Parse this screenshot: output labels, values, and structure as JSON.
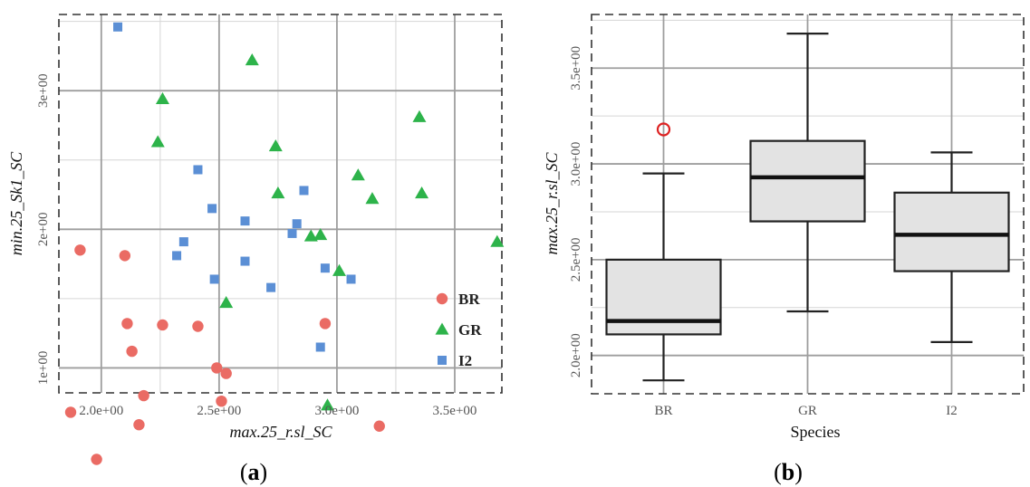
{
  "chart_data": [
    {
      "type": "scatter",
      "panel_label": {
        "open": "(",
        "letter": "a",
        "close": ")"
      },
      "xlabel": "max.25_r.sl_SC",
      "ylabel": "min.25_Sk1_SC",
      "xlim": [
        1.82,
        3.7
      ],
      "ylim": [
        0.82,
        3.55
      ],
      "xticks": [
        2.0,
        2.5,
        3.0,
        3.5
      ],
      "xtick_labels": [
        "2.0e+00",
        "2.5e+00",
        "3.0e+00",
        "3.5e+00"
      ],
      "yticks": [
        1,
        2,
        3
      ],
      "ytick_labels": [
        "1e+00",
        "2e+00",
        "3e+00"
      ],
      "grid": true,
      "legend_position": "bottom-right",
      "series": [
        {
          "name": "BR",
          "color": "#ea6b64",
          "marker": "circle",
          "points": [
            [
              1.91,
              1.85
            ],
            [
              2.1,
              1.81
            ],
            [
              2.11,
              1.32
            ],
            [
              2.13,
              1.12
            ],
            [
              1.87,
              0.68
            ],
            [
              1.98,
              0.34
            ],
            [
              2.16,
              0.59
            ],
            [
              2.18,
              0.8
            ],
            [
              2.26,
              1.31
            ],
            [
              2.41,
              1.3
            ],
            [
              2.49,
              1.0
            ],
            [
              2.53,
              0.96
            ],
            [
              2.51,
              0.76
            ],
            [
              2.95,
              1.32
            ],
            [
              3.18,
              0.58
            ]
          ]
        },
        {
          "name": "GR",
          "color": "#2db34a",
          "marker": "triangle",
          "points": [
            [
              2.64,
              3.22
            ],
            [
              2.26,
              2.94
            ],
            [
              2.24,
              2.63
            ],
            [
              2.74,
              2.6
            ],
            [
              2.75,
              2.26
            ],
            [
              3.35,
              2.81
            ],
            [
              3.09,
              2.39
            ],
            [
              3.36,
              2.26
            ],
            [
              3.15,
              2.22
            ],
            [
              2.89,
              1.95
            ],
            [
              2.93,
              1.96
            ],
            [
              3.01,
              1.7
            ],
            [
              2.53,
              1.47
            ],
            [
              3.68,
              1.91
            ],
            [
              2.96,
              0.73
            ]
          ]
        },
        {
          "name": "I2",
          "color": "#5b8fd5",
          "marker": "square",
          "points": [
            [
              2.07,
              3.46
            ],
            [
              2.41,
              2.43
            ],
            [
              2.47,
              2.15
            ],
            [
              2.61,
              2.06
            ],
            [
              2.86,
              2.28
            ],
            [
              2.83,
              2.04
            ],
            [
              2.81,
              1.97
            ],
            [
              2.35,
              1.91
            ],
            [
              2.32,
              1.81
            ],
            [
              2.61,
              1.77
            ],
            [
              2.95,
              1.72
            ],
            [
              2.48,
              1.64
            ],
            [
              2.72,
              1.58
            ],
            [
              3.06,
              1.64
            ],
            [
              2.93,
              1.15
            ]
          ]
        }
      ]
    },
    {
      "type": "box",
      "panel_label": {
        "open": "(",
        "letter": "b",
        "close": ")"
      },
      "xlabel": "Species",
      "ylabel": "max.25_r.sl_SC",
      "categories": [
        "BR",
        "GR",
        "I2"
      ],
      "ylim": [
        1.8,
        3.78
      ],
      "yticks": [
        2.0,
        2.5,
        3.0,
        3.5
      ],
      "ytick_labels": [
        "2.0e+00",
        "2.5e+00",
        "3.0e+00",
        "3.5e+00"
      ],
      "grid": true,
      "outlier_color": "#dd2222",
      "box_fill": "#e3e3e3",
      "boxes": [
        {
          "category": "BR",
          "whisker_low": 1.87,
          "q1": 2.11,
          "median": 2.18,
          "q3": 2.5,
          "whisker_high": 2.95,
          "outliers": [
            3.18
          ]
        },
        {
          "category": "GR",
          "whisker_low": 2.23,
          "q1": 2.7,
          "median": 2.93,
          "q3": 3.12,
          "whisker_high": 3.68,
          "outliers": []
        },
        {
          "category": "I2",
          "whisker_low": 2.07,
          "q1": 2.44,
          "median": 2.63,
          "q3": 2.85,
          "whisker_high": 3.06,
          "outliers": []
        }
      ]
    }
  ]
}
